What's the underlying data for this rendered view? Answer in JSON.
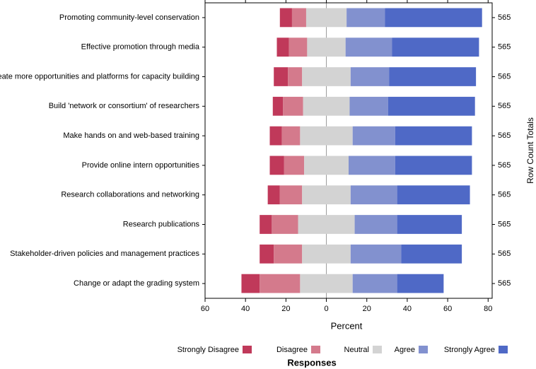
{
  "chart_data": {
    "type": "diverging_bar",
    "categories": [
      "Promoting community-level conservation",
      "Effective promotion through media",
      "Create more opportunities and platforms for capacity building",
      "Build 'network or consortium' of researchers",
      "Make hands on and web-based training",
      "Provide online intern opportunities",
      "Research collaborations and networking",
      "Research publications",
      "Stakeholder-driven policies and management practices",
      "Change or adapt the grading system"
    ],
    "series": [
      {
        "name": "Strongly Disagree",
        "color": "#c0395a",
        "values": [
          6,
          6,
          7,
          5,
          6,
          7,
          6,
          6,
          7,
          9
        ]
      },
      {
        "name": "Disagree",
        "color": "#d47a8c",
        "values": [
          7,
          9,
          7,
          10,
          9,
          10,
          11,
          13,
          14,
          20
        ]
      },
      {
        "name": "Neutral",
        "color": "#d3d3d3",
        "values": [
          20,
          19,
          24,
          23,
          26,
          22,
          24,
          28,
          24,
          26
        ]
      },
      {
        "name": "Agree",
        "color": "#8291cf",
        "values": [
          19,
          23,
          19,
          19,
          21,
          23,
          23,
          21,
          25,
          22
        ]
      },
      {
        "name": "Strongly Agree",
        "color": "#4f69c6",
        "values": [
          48,
          43,
          43,
          43,
          38,
          38,
          36,
          32,
          30,
          23
        ]
      }
    ],
    "row_totals": [
      565,
      565,
      565,
      565,
      565,
      565,
      565,
      565,
      565,
      565
    ],
    "xlabel": "Percent",
    "y2label": "Row Count Totals",
    "legend_title": "Responses",
    "xlim": [
      -60,
      82
    ],
    "xticks": [
      {
        "value": -60,
        "label": "60"
      },
      {
        "value": -40,
        "label": "40"
      },
      {
        "value": -20,
        "label": "20"
      },
      0,
      20,
      40,
      60,
      80
    ]
  }
}
